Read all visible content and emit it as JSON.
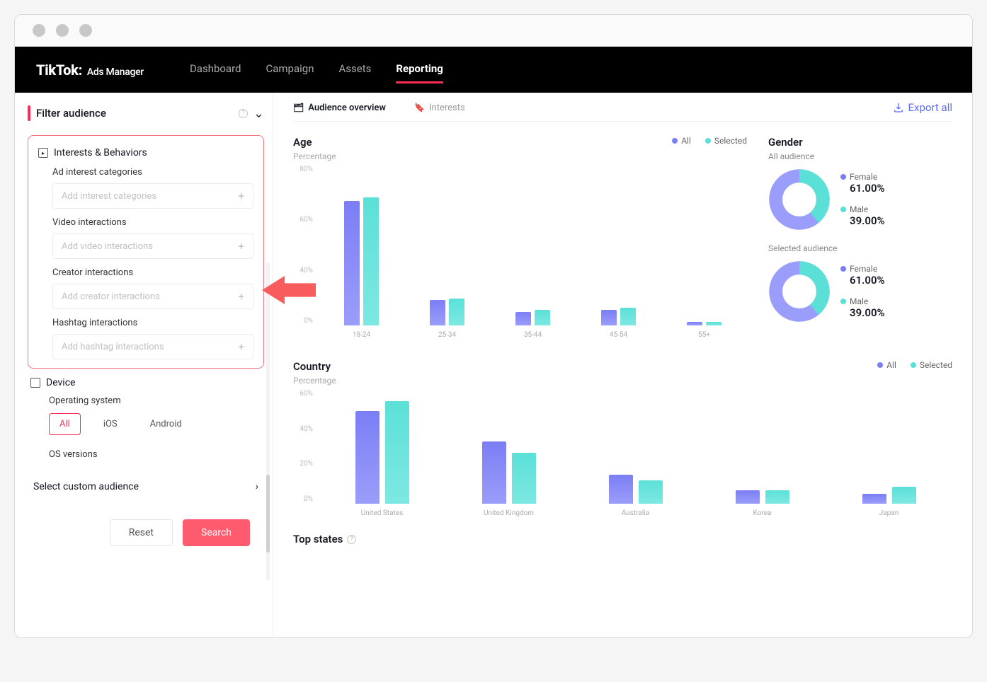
{
  "nav": {
    "logo": "TikTok:",
    "logo_sub": "Ads Manager",
    "items": [
      "Dashboard",
      "Campaign",
      "Assets",
      "Reporting"
    ],
    "active": 3
  },
  "sidebar": {
    "filter_title": "Filter audience",
    "interests": {
      "title": "Interests & Behaviors",
      "fields": [
        {
          "label": "Ad interest categories",
          "placeholder": "Add interest categories"
        },
        {
          "label": "Video interactions",
          "placeholder": "Add video interactions"
        },
        {
          "label": "Creator interactions",
          "placeholder": "Add creator interactions"
        },
        {
          "label": "Hashtag interactions",
          "placeholder": "Add hashtag interactions"
        }
      ]
    },
    "device": {
      "title": "Device",
      "os_label": "Operating system",
      "os_tabs": [
        "All",
        "iOS",
        "Android"
      ],
      "os_active": 0,
      "versions": "OS versions"
    },
    "custom": "Select custom audience",
    "reset": "Reset",
    "search": "Search"
  },
  "tabs": {
    "overview": "Audience overview",
    "interests": "Interests",
    "export": "Export all"
  },
  "colors": {
    "all": "#7b7ef5",
    "selected": "#5be0d8",
    "accent": "#fe2c55"
  },
  "age_chart": {
    "title": "Age",
    "sub": "Percentage",
    "yticks": [
      "80%",
      "60%",
      "40%",
      "0%"
    ],
    "legend": {
      "all": "All",
      "selected": "Selected"
    },
    "categories": [
      "18-24",
      "25-34",
      "35-44",
      "45-54",
      "55+"
    ],
    "all": [
      64,
      13,
      7,
      8,
      2
    ],
    "selected": [
      66,
      14,
      8,
      9,
      2
    ]
  },
  "gender": {
    "title": "Gender",
    "all_sub": "All audience",
    "sel_sub": "Selected audience",
    "female_label": "Female",
    "female_pct": "61.00%",
    "male_label": "Male",
    "male_pct": "39.00%",
    "female_val": 61,
    "male_val": 39
  },
  "country_chart": {
    "title": "Country",
    "sub": "Percentage",
    "yticks": [
      "60%",
      "40%",
      "20%",
      "0%"
    ],
    "legend": {
      "all": "All",
      "selected": "Selected"
    },
    "categories": [
      "United States",
      "United Kingdom",
      "Australia",
      "Korea",
      "Japan"
    ],
    "all": [
      55,
      37,
      17,
      8,
      6
    ],
    "selected": [
      61,
      30,
      14,
      8,
      10
    ]
  },
  "top_states": "Top states"
}
